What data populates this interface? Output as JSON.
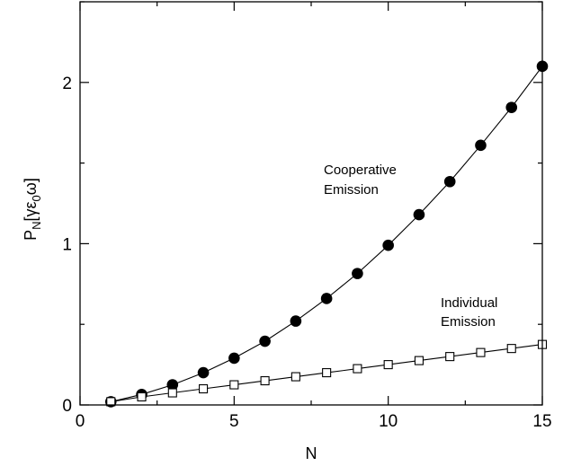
{
  "chart_data": {
    "type": "scatter",
    "title": "",
    "xlabel": "N",
    "ylabel": "P_N[γε_0ω]",
    "ylabel_parts": {
      "main": "P",
      "sub_n": "N",
      "bracket_open": "[γε",
      "sub_0": "0",
      "bracket_close": "ω]"
    },
    "xlim": [
      0,
      15
    ],
    "ylim": [
      0,
      2.5
    ],
    "xticks": [
      0,
      5,
      10,
      15
    ],
    "yticks": [
      0,
      1,
      2
    ],
    "x": [
      1,
      2,
      3,
      4,
      5,
      6,
      7,
      8,
      9,
      10,
      11,
      12,
      13,
      14,
      15
    ],
    "series": [
      {
        "marker": "filled-circle",
        "values": [
          0.02,
          0.065,
          0.125,
          0.2,
          0.29,
          0.395,
          0.52,
          0.66,
          0.815,
          0.99,
          1.18,
          1.385,
          1.61,
          1.845,
          2.1
        ]
      },
      {
        "marker": "open-square",
        "values": [
          0.02,
          0.05,
          0.075,
          0.1,
          0.125,
          0.15,
          0.175,
          0.2,
          0.225,
          0.25,
          0.275,
          0.3,
          0.325,
          0.35,
          0.375
        ]
      }
    ],
    "annotations": {
      "cooperative_line1": "Cooperative",
      "cooperative_line2": "Emission",
      "individual_line1": "Individual",
      "individual_line2": "Emission"
    },
    "grid": false
  }
}
